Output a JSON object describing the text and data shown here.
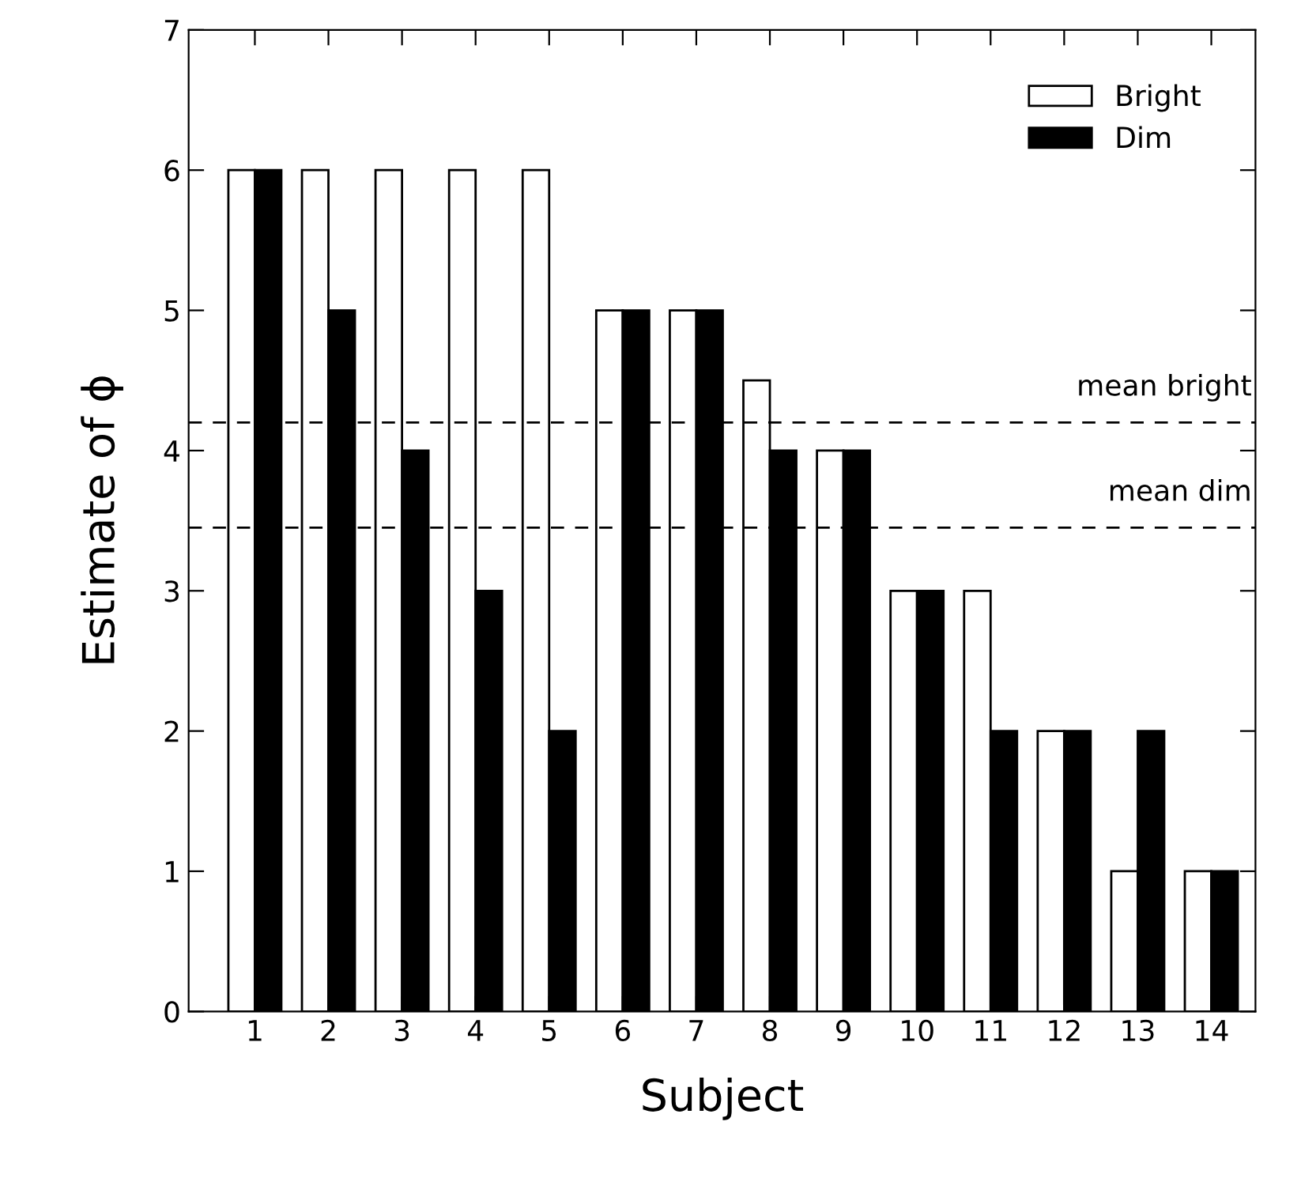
{
  "chart_data": {
    "type": "bar",
    "xlabel": "Subject",
    "ylabel": "Estimate of ϕ",
    "categories": [
      "1",
      "2",
      "3",
      "4",
      "5",
      "6",
      "7",
      "8",
      "9",
      "10",
      "11",
      "12",
      "13",
      "14"
    ],
    "series": [
      {
        "name": "Bright",
        "color": "#ffffff",
        "values": [
          6,
          6,
          6,
          6,
          6,
          5,
          5,
          4.5,
          4,
          3,
          3,
          2,
          1,
          1
        ]
      },
      {
        "name": "Dim",
        "color": "#000000",
        "values": [
          6,
          5,
          4,
          3,
          2,
          5,
          5,
          4,
          4,
          3,
          2,
          2,
          2,
          1
        ]
      }
    ],
    "ylim": [
      0,
      7
    ],
    "yticks": [
      0,
      1,
      2,
      3,
      4,
      5,
      6,
      7
    ],
    "ref_lines": [
      {
        "axis": "y",
        "value": 4.2,
        "label": "mean bright",
        "line_style": "dashed",
        "color": "#000000"
      },
      {
        "axis": "y",
        "value": 3.45,
        "label": "mean dim",
        "line_style": "dashed",
        "color": "#000000"
      }
    ],
    "legend": "top right",
    "grid": false
  }
}
